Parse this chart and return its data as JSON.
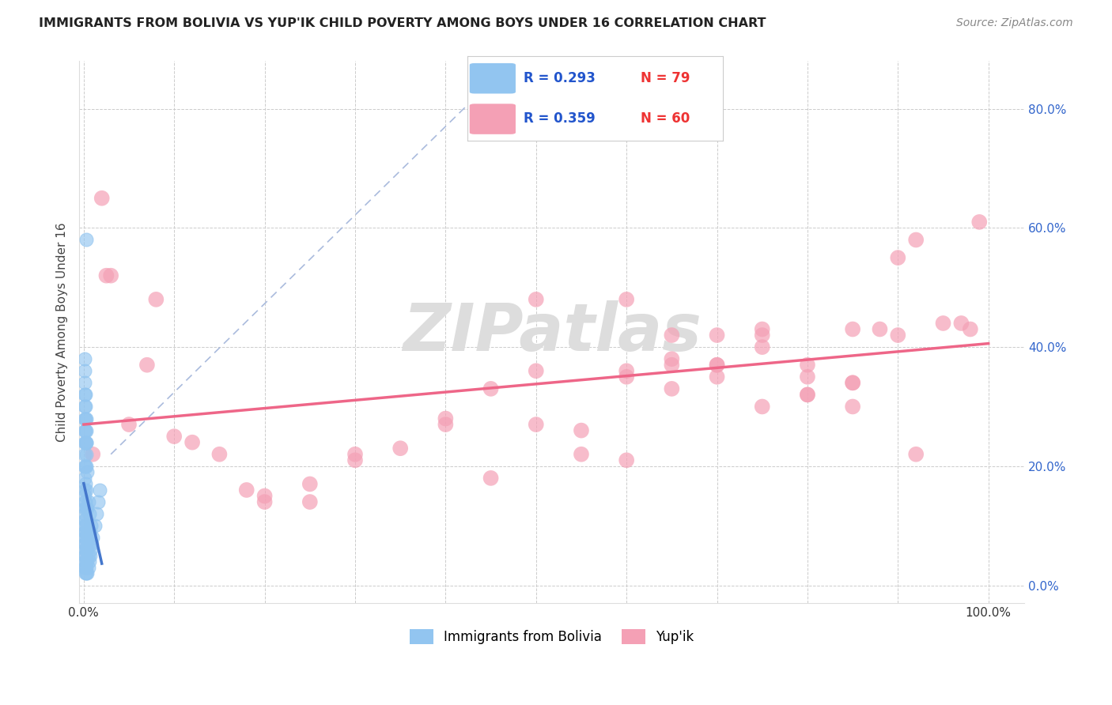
{
  "title": "IMMIGRANTS FROM BOLIVIA VS YUP'IK CHILD POVERTY AMONG BOYS UNDER 16 CORRELATION CHART",
  "source": "Source: ZipAtlas.com",
  "ylabel": "Child Poverty Among Boys Under 16",
  "ytick_labels": [
    "0.0%",
    "20.0%",
    "40.0%",
    "60.0%",
    "80.0%"
  ],
  "ytick_values": [
    0.0,
    0.2,
    0.4,
    0.6,
    0.8
  ],
  "color_bolivia": "#92C5F0",
  "color_yupik": "#F4A0B5",
  "trendline_bolivia_color": "#4477CC",
  "trendline_yupik_color": "#EE6688",
  "diagonal_color": "#AABBDD",
  "watermark_zip": "ZIP",
  "watermark_atlas": "atlas",
  "watermark_color_zip": "#CCCCCC",
  "watermark_color_atlas": "#CCCCCC",
  "bolivia_x": [
    0.001,
    0.001,
    0.001,
    0.001,
    0.001,
    0.001,
    0.001,
    0.001,
    0.001,
    0.001,
    0.001,
    0.001,
    0.001,
    0.001,
    0.001,
    0.001,
    0.001,
    0.001,
    0.001,
    0.001,
    0.002,
    0.002,
    0.002,
    0.002,
    0.002,
    0.002,
    0.002,
    0.002,
    0.002,
    0.002,
    0.003,
    0.003,
    0.003,
    0.003,
    0.003,
    0.003,
    0.003,
    0.003,
    0.003,
    0.003,
    0.004,
    0.004,
    0.004,
    0.004,
    0.004,
    0.004,
    0.005,
    0.005,
    0.005,
    0.005,
    0.006,
    0.006,
    0.006,
    0.007,
    0.007,
    0.008,
    0.008,
    0.009,
    0.01,
    0.012,
    0.014,
    0.016,
    0.018,
    0.001,
    0.001,
    0.001,
    0.001,
    0.001,
    0.002,
    0.002,
    0.002,
    0.002,
    0.003,
    0.003,
    0.003,
    0.003,
    0.003
  ],
  "bolivia_y": [
    0.03,
    0.04,
    0.05,
    0.06,
    0.07,
    0.08,
    0.09,
    0.1,
    0.11,
    0.12,
    0.13,
    0.14,
    0.15,
    0.16,
    0.18,
    0.2,
    0.22,
    0.24,
    0.26,
    0.28,
    0.02,
    0.03,
    0.05,
    0.07,
    0.09,
    0.11,
    0.14,
    0.17,
    0.2,
    0.24,
    0.02,
    0.03,
    0.04,
    0.06,
    0.08,
    0.1,
    0.13,
    0.16,
    0.2,
    0.24,
    0.02,
    0.04,
    0.06,
    0.09,
    0.13,
    0.19,
    0.03,
    0.05,
    0.08,
    0.14,
    0.04,
    0.07,
    0.12,
    0.05,
    0.09,
    0.06,
    0.1,
    0.07,
    0.08,
    0.1,
    0.12,
    0.14,
    0.16,
    0.3,
    0.32,
    0.34,
    0.36,
    0.38,
    0.26,
    0.28,
    0.3,
    0.32,
    0.22,
    0.24,
    0.26,
    0.28,
    0.58
  ],
  "yupik_x": [
    0.01,
    0.02,
    0.025,
    0.03,
    0.05,
    0.07,
    0.08,
    0.1,
    0.12,
    0.15,
    0.18,
    0.2,
    0.25,
    0.3,
    0.35,
    0.4,
    0.45,
    0.5,
    0.55,
    0.6,
    0.6,
    0.65,
    0.65,
    0.7,
    0.7,
    0.75,
    0.75,
    0.8,
    0.8,
    0.85,
    0.85,
    0.88,
    0.9,
    0.92,
    0.95,
    0.97,
    0.98,
    0.99,
    0.65,
    0.7,
    0.75,
    0.8,
    0.85,
    0.9,
    0.5,
    0.55,
    0.6,
    0.7,
    0.8,
    0.92,
    0.4,
    0.5,
    0.65,
    0.75,
    0.85,
    0.3,
    0.45,
    0.2,
    0.25,
    0.6
  ],
  "yupik_y": [
    0.22,
    0.65,
    0.52,
    0.52,
    0.27,
    0.37,
    0.48,
    0.25,
    0.24,
    0.22,
    0.16,
    0.15,
    0.17,
    0.21,
    0.23,
    0.28,
    0.33,
    0.27,
    0.22,
    0.36,
    0.48,
    0.37,
    0.42,
    0.37,
    0.42,
    0.4,
    0.43,
    0.32,
    0.37,
    0.34,
    0.43,
    0.43,
    0.42,
    0.58,
    0.44,
    0.44,
    0.43,
    0.61,
    0.33,
    0.35,
    0.42,
    0.32,
    0.34,
    0.55,
    0.36,
    0.26,
    0.35,
    0.37,
    0.35,
    0.22,
    0.27,
    0.48,
    0.38,
    0.3,
    0.3,
    0.22,
    0.18,
    0.14,
    0.14,
    0.21
  ]
}
